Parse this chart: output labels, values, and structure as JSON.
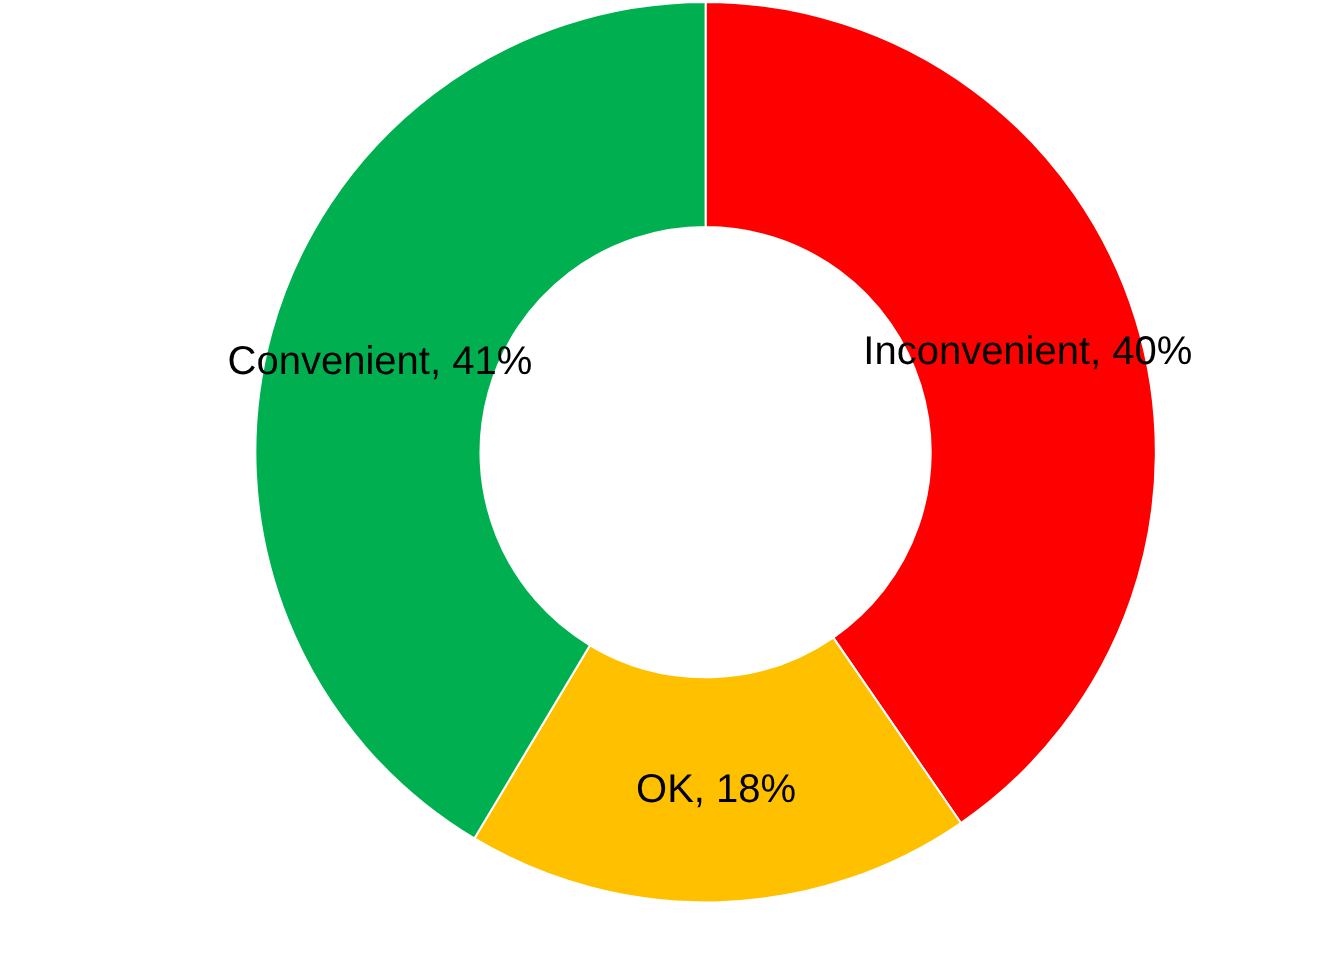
{
  "chart_data": {
    "type": "donut",
    "categories": [
      "Inconvenient",
      "OK",
      "Convenient"
    ],
    "values": [
      40,
      18,
      41
    ],
    "value_labels": [
      "40%",
      "18%",
      "41%"
    ],
    "colors": [
      "#ff0000",
      "#ffc000",
      "#00b050"
    ],
    "legend": false
  }
}
